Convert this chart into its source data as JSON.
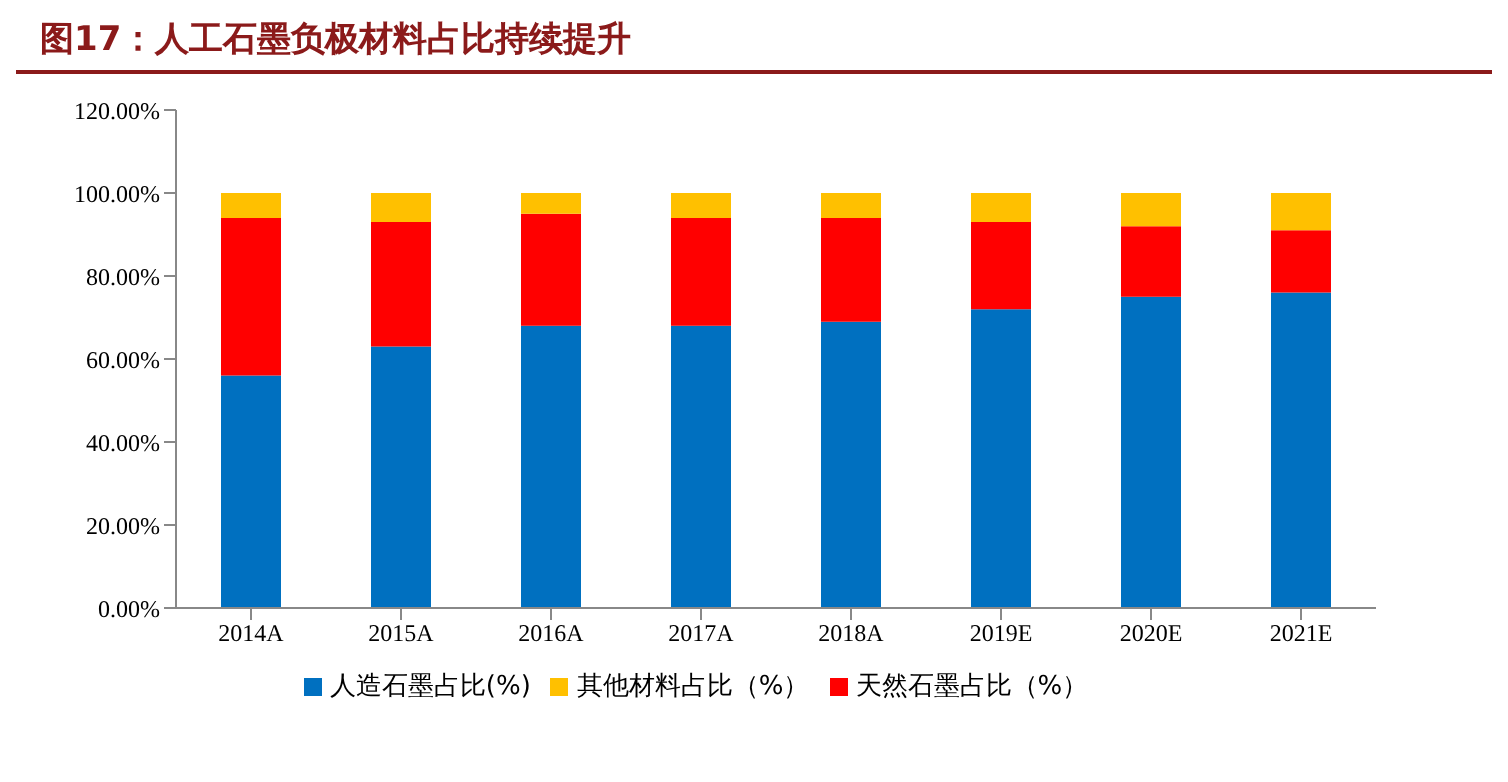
{
  "chart_data": {
    "type": "bar",
    "title": "图17：人工石墨负极材料占比持续提升",
    "stacked": true,
    "categories": [
      "2014A",
      "2015A",
      "2016A",
      "2017A",
      "2018A",
      "2019E",
      "2020E",
      "2021E"
    ],
    "series": [
      {
        "name": "人造石墨占比(%)",
        "color": "#0070c0",
        "values": [
          56,
          63,
          68,
          68,
          69,
          72,
          75,
          76
        ]
      },
      {
        "name": "天然石墨占比（%）",
        "color": "#ff0000",
        "values": [
          38,
          30,
          27,
          26,
          25,
          21,
          17,
          15
        ]
      },
      {
        "name": "其他材料占比（%）",
        "color": "#ffc000",
        "values": [
          6,
          7,
          5,
          6,
          6,
          7,
          8,
          9
        ]
      }
    ],
    "ylim": [
      0,
      120
    ],
    "yticks": [
      {
        "value": 0,
        "label": "0.00%"
      },
      {
        "value": 20,
        "label": "20.00%"
      },
      {
        "value": 40,
        "label": "40.00%"
      },
      {
        "value": 60,
        "label": "60.00%"
      },
      {
        "value": 80,
        "label": "80.00%"
      },
      {
        "value": 100,
        "label": "100.00%"
      },
      {
        "value": 120,
        "label": "120.00%"
      }
    ],
    "grid": false,
    "legend": "bottom"
  }
}
